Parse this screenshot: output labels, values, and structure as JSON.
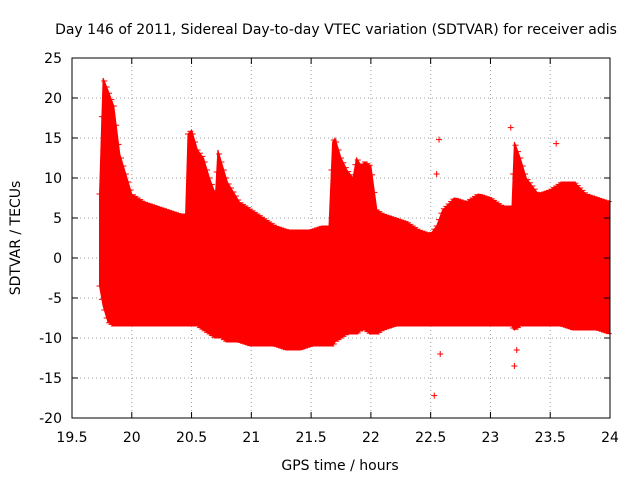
{
  "chart_data": {
    "type": "errorbar",
    "title": "Day 146 of 2011, Sidereal Day-to-day VTEC variation (SDTVAR) for receiver adis",
    "xlabel": "GPS time / hours",
    "ylabel": "SDTVAR / TECUs",
    "xlim": [
      19.5,
      24
    ],
    "ylim": [
      -20,
      25
    ],
    "xticks": [
      19.5,
      20,
      20.5,
      21,
      21.5,
      22,
      22.5,
      23,
      23.5,
      24
    ],
    "xtick_labels": [
      "19.5",
      "20",
      "20.5",
      "21",
      "21.5",
      "22",
      "22.5",
      "23",
      "23.5",
      "24"
    ],
    "yticks": [
      -20,
      -15,
      -10,
      -5,
      0,
      5,
      10,
      15,
      20,
      25
    ],
    "ytick_labels": [
      "-20",
      "-15",
      "-10",
      "-5",
      "0",
      "5",
      "10",
      "15",
      "20",
      "25"
    ],
    "grid": true,
    "series_color": "#ff0000",
    "envelope": {
      "x": [
        19.73,
        19.76,
        19.8,
        19.85,
        19.9,
        20.0,
        20.1,
        20.2,
        20.3,
        20.4,
        20.45,
        20.47,
        20.5,
        20.55,
        20.6,
        20.65,
        20.7,
        20.72,
        20.75,
        20.8,
        20.9,
        21.0,
        21.1,
        21.2,
        21.3,
        21.4,
        21.5,
        21.6,
        21.65,
        21.68,
        21.7,
        21.75,
        21.8,
        21.85,
        21.88,
        21.92,
        21.95,
        22.0,
        22.05,
        22.1,
        22.2,
        22.3,
        22.4,
        22.5,
        22.55,
        22.6,
        22.7,
        22.8,
        22.9,
        23.0,
        23.1,
        23.15,
        23.18,
        23.2,
        23.25,
        23.3,
        23.4,
        23.5,
        23.6,
        23.7,
        23.8,
        23.9,
        24.0
      ],
      "upper": [
        8.0,
        22.5,
        21.0,
        19.0,
        13.0,
        8.0,
        7.0,
        6.5,
        6.0,
        5.5,
        5.5,
        15.5,
        16.0,
        13.5,
        12.5,
        10.0,
        8.0,
        13.5,
        12.0,
        9.5,
        7.0,
        6.0,
        5.0,
        4.0,
        3.5,
        3.5,
        3.5,
        4.0,
        4.0,
        14.5,
        15.0,
        12.5,
        11.0,
        10.0,
        12.5,
        11.5,
        12.0,
        11.5,
        6.0,
        5.5,
        5.0,
        4.5,
        3.5,
        3.0,
        4.0,
        6.0,
        7.5,
        7.0,
        8.0,
        7.5,
        6.5,
        6.5,
        6.5,
        14.5,
        12.5,
        10.0,
        8.0,
        8.5,
        9.5,
        9.5,
        8.0,
        7.5,
        7.0
      ],
      "lower": [
        -3.5,
        -6.0,
        -8.0,
        -8.5,
        -8.5,
        -8.5,
        -8.5,
        -8.5,
        -8.5,
        -8.5,
        -8.5,
        -8.5,
        -8.5,
        -8.5,
        -9.0,
        -9.5,
        -10.0,
        -10.0,
        -10.0,
        -10.5,
        -10.5,
        -11.0,
        -11.0,
        -11.0,
        -11.5,
        -11.5,
        -11.0,
        -11.0,
        -11.0,
        -11.0,
        -10.5,
        -10.0,
        -9.5,
        -9.5,
        -9.5,
        -9.0,
        -9.0,
        -9.5,
        -9.5,
        -9.0,
        -8.5,
        -8.5,
        -8.5,
        -8.5,
        -8.5,
        -8.5,
        -8.5,
        -8.5,
        -8.5,
        -8.5,
        -8.5,
        -8.5,
        -8.5,
        -9.0,
        -8.5,
        -8.5,
        -8.5,
        -8.5,
        -8.5,
        -9.0,
        -9.0,
        -9.0,
        -9.5
      ]
    },
    "outliers": [
      {
        "x": 22.53,
        "y": -17.2
      },
      {
        "x": 22.55,
        "y": 10.5
      },
      {
        "x": 22.57,
        "y": 14.8
      },
      {
        "x": 22.58,
        "y": -12.0
      },
      {
        "x": 23.17,
        "y": 16.3
      },
      {
        "x": 23.2,
        "y": -13.5
      },
      {
        "x": 23.55,
        "y": 14.3
      },
      {
        "x": 23.22,
        "y": -11.5
      }
    ]
  }
}
